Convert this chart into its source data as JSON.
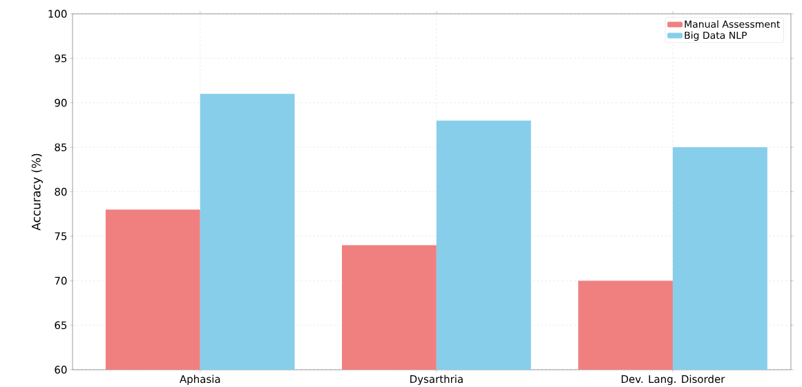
{
  "chart_data": {
    "type": "bar",
    "ylabel": "Accuracy (%)",
    "categories": [
      "Aphasia",
      "Dysarthria",
      "Dev. Lang. Disorder"
    ],
    "series": [
      {
        "name": "Manual Assessment",
        "color": "#f08080",
        "values": [
          78,
          74,
          70
        ]
      },
      {
        "name": "Big Data NLP",
        "color": "#87ceeb",
        "values": [
          91,
          88,
          85
        ]
      }
    ],
    "ylim": [
      60,
      100
    ],
    "yticks": [
      60,
      65,
      70,
      75,
      80,
      85,
      90,
      95,
      100
    ],
    "grid": true,
    "legend": "top right"
  }
}
